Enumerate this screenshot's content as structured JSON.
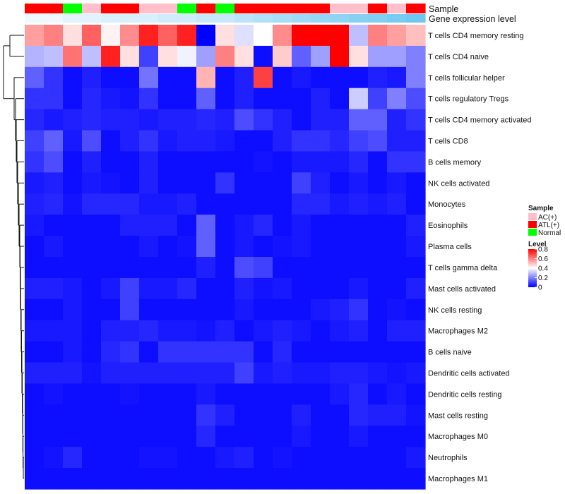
{
  "chart_data": {
    "type": "heatmap",
    "annotation_tracks": [
      {
        "name": "Sample",
        "label": "Sample"
      },
      {
        "name": "Gene expression level",
        "label": "Gene expression level"
      }
    ],
    "sample_groups": [
      "ATL(+)",
      "ATL(+)",
      "Normal",
      "AC(+)",
      "ATL(+)",
      "ATL(+)",
      "AC(+)",
      "AC(+)",
      "Normal",
      "ATL(+)",
      "Normal",
      "ATL(+)",
      "ATL(+)",
      "ATL(+)",
      "ATL(+)",
      "ATL(+)",
      "AC(+)",
      "AC(+)",
      "ATL(+)",
      "AC(+)",
      "ATL(+)"
    ],
    "gene_expression_level": [
      0.05,
      0.05,
      0.08,
      0.08,
      0.1,
      0.1,
      0.1,
      0.12,
      0.12,
      0.14,
      0.14,
      0.16,
      0.18,
      0.2,
      0.22,
      0.24,
      0.25,
      0.27,
      0.28,
      0.3,
      0.32
    ],
    "rows": [
      "T cells CD4 memory resting",
      "T cells CD4 naive",
      "T cells follicular helper",
      "T cells regulatory  Tregs",
      "T cells CD4 memory activated",
      "T cells CD8",
      "B cells memory",
      "NK cells activated",
      "Monocytes",
      "Eosinophils",
      "Plasma cells",
      "T cells gamma delta",
      "Mast cells activated",
      "NK cells resting",
      "Macrophages M2",
      "B cells naive",
      "Dendritic cells activated",
      "Dendritic cells resting",
      "Mast cells resting",
      "Macrophages M0",
      "Neutrophils",
      "Macrophages M1"
    ],
    "values": [
      [
        0.55,
        0.6,
        0.45,
        0.65,
        0.42,
        0.58,
        0.75,
        0.65,
        0.75,
        0.0,
        0.45,
        0.35,
        0.4,
        0.58,
        0.8,
        0.8,
        0.8,
        0.3,
        0.6,
        0.55,
        0.5
      ],
      [
        0.28,
        0.3,
        0.62,
        0.3,
        0.75,
        0.45,
        0.1,
        0.45,
        0.38,
        0.25,
        0.6,
        0.45,
        0.02,
        0.48,
        0.15,
        0.25,
        0.8,
        0.45,
        0.25,
        0.25,
        0.2
      ],
      [
        0.15,
        0.08,
        0.02,
        0.05,
        0.02,
        0.02,
        0.18,
        0.02,
        0.02,
        0.52,
        0.02,
        0.05,
        0.7,
        0.02,
        0.04,
        0.02,
        0.02,
        0.02,
        0.05,
        0.04,
        0.2
      ],
      [
        0.08,
        0.08,
        0.02,
        0.06,
        0.04,
        0.03,
        0.08,
        0.02,
        0.02,
        0.15,
        0.02,
        0.05,
        0.02,
        0.02,
        0.02,
        0.05,
        0.02,
        0.32,
        0.1,
        0.2,
        0.12
      ],
      [
        0.06,
        0.04,
        0.05,
        0.06,
        0.05,
        0.05,
        0.04,
        0.05,
        0.05,
        0.06,
        0.05,
        0.12,
        0.08,
        0.05,
        0.02,
        0.05,
        0.05,
        0.15,
        0.15,
        0.05,
        0.08
      ],
      [
        0.1,
        0.15,
        0.04,
        0.12,
        0.02,
        0.05,
        0.08,
        0.04,
        0.05,
        0.05,
        0.04,
        0.02,
        0.02,
        0.05,
        0.08,
        0.08,
        0.06,
        0.1,
        0.12,
        0.05,
        0.05
      ],
      [
        0.08,
        0.12,
        0.02,
        0.05,
        0.02,
        0.02,
        0.05,
        0.02,
        0.02,
        0.02,
        0.02,
        0.02,
        0.03,
        0.02,
        0.04,
        0.04,
        0.04,
        0.06,
        0.02,
        0.08,
        0.08
      ],
      [
        0.04,
        0.05,
        0.02,
        0.04,
        0.03,
        0.02,
        0.05,
        0.02,
        0.02,
        0.02,
        0.08,
        0.02,
        0.02,
        0.02,
        0.1,
        0.05,
        0.02,
        0.04,
        0.02,
        0.04,
        0.02
      ],
      [
        0.05,
        0.06,
        0.03,
        0.06,
        0.06,
        0.06,
        0.04,
        0.04,
        0.05,
        0.02,
        0.02,
        0.02,
        0.02,
        0.02,
        0.06,
        0.06,
        0.04,
        0.05,
        0.04,
        0.05,
        0.02
      ],
      [
        0.04,
        0.02,
        0.02,
        0.02,
        0.02,
        0.05,
        0.05,
        0.05,
        0.02,
        0.15,
        0.02,
        0.04,
        0.06,
        0.02,
        0.04,
        0.02,
        0.02,
        0.02,
        0.02,
        0.02,
        0.05
      ],
      [
        0.02,
        0.04,
        0.02,
        0.02,
        0.02,
        0.02,
        0.04,
        0.02,
        0.03,
        0.15,
        0.02,
        0.04,
        0.02,
        0.03,
        0.04,
        0.02,
        0.02,
        0.02,
        0.02,
        0.02,
        0.04
      ],
      [
        0.02,
        0.02,
        0.02,
        0.02,
        0.02,
        0.02,
        0.02,
        0.02,
        0.02,
        0.05,
        0.02,
        0.12,
        0.1,
        0.02,
        0.02,
        0.02,
        0.02,
        0.02,
        0.02,
        0.02,
        0.02
      ],
      [
        0.05,
        0.05,
        0.04,
        0.02,
        0.04,
        0.1,
        0.04,
        0.04,
        0.06,
        0.02,
        0.02,
        0.05,
        0.03,
        0.04,
        0.02,
        0.02,
        0.02,
        0.04,
        0.02,
        0.02,
        0.05
      ],
      [
        0.02,
        0.02,
        0.04,
        0.02,
        0.02,
        0.1,
        0.02,
        0.02,
        0.02,
        0.02,
        0.02,
        0.04,
        0.02,
        0.02,
        0.02,
        0.04,
        0.05,
        0.08,
        0.02,
        0.03,
        0.02
      ],
      [
        0.04,
        0.04,
        0.04,
        0.02,
        0.05,
        0.05,
        0.06,
        0.04,
        0.04,
        0.03,
        0.05,
        0.02,
        0.04,
        0.05,
        0.04,
        0.02,
        0.04,
        0.05,
        0.02,
        0.05,
        0.05
      ],
      [
        0.02,
        0.02,
        0.04,
        0.02,
        0.06,
        0.08,
        0.02,
        0.08,
        0.08,
        0.08,
        0.08,
        0.08,
        0.02,
        0.06,
        0.02,
        0.02,
        0.02,
        0.02,
        0.02,
        0.02,
        0.02
      ],
      [
        0.05,
        0.05,
        0.05,
        0.03,
        0.05,
        0.05,
        0.05,
        0.05,
        0.05,
        0.05,
        0.05,
        0.1,
        0.04,
        0.05,
        0.04,
        0.04,
        0.05,
        0.05,
        0.04,
        0.03,
        0.04
      ],
      [
        0.02,
        0.03,
        0.02,
        0.02,
        0.02,
        0.03,
        0.02,
        0.02,
        0.02,
        0.04,
        0.02,
        0.02,
        0.02,
        0.02,
        0.02,
        0.02,
        0.04,
        0.06,
        0.02,
        0.04,
        0.02
      ],
      [
        0.02,
        0.02,
        0.02,
        0.02,
        0.02,
        0.02,
        0.02,
        0.02,
        0.02,
        0.08,
        0.05,
        0.02,
        0.02,
        0.02,
        0.05,
        0.02,
        0.02,
        0.06,
        0.05,
        0.05,
        0.03
      ],
      [
        0.02,
        0.02,
        0.02,
        0.02,
        0.02,
        0.02,
        0.02,
        0.02,
        0.02,
        0.06,
        0.02,
        0.02,
        0.02,
        0.02,
        0.04,
        0.02,
        0.02,
        0.04,
        0.02,
        0.02,
        0.02
      ],
      [
        0.02,
        0.03,
        0.06,
        0.02,
        0.02,
        0.02,
        0.03,
        0.03,
        0.02,
        0.02,
        0.04,
        0.05,
        0.02,
        0.03,
        0.02,
        0.02,
        0.02,
        0.02,
        0.02,
        0.02,
        0.04
      ],
      [
        0.02,
        0.02,
        0.02,
        0.02,
        0.02,
        0.02,
        0.02,
        0.02,
        0.02,
        0.02,
        0.02,
        0.02,
        0.02,
        0.02,
        0.02,
        0.02,
        0.02,
        0.02,
        0.02,
        0.02,
        0.02
      ]
    ],
    "color_scale": {
      "min": 0,
      "max": 0.8,
      "colors": [
        "#0000ff",
        "#ffffff",
        "#ff0000"
      ]
    },
    "legend": {
      "sample_title": "Sample",
      "sample_entries": [
        {
          "label": "AC(+)",
          "color": "#ffc0cb"
        },
        {
          "label": "ATL(+)",
          "color": "#ff0000"
        },
        {
          "label": "Normal",
          "color": "#00ff00"
        }
      ],
      "level_title": "Level",
      "level_ticks": [
        {
          "label": "0.8",
          "value": 0.8
        },
        {
          "label": "0.6",
          "value": 0.6
        },
        {
          "label": "0.4",
          "value": 0.4
        },
        {
          "label": "0.2",
          "value": 0.2
        },
        {
          "label": "0",
          "value": 0
        }
      ]
    }
  }
}
